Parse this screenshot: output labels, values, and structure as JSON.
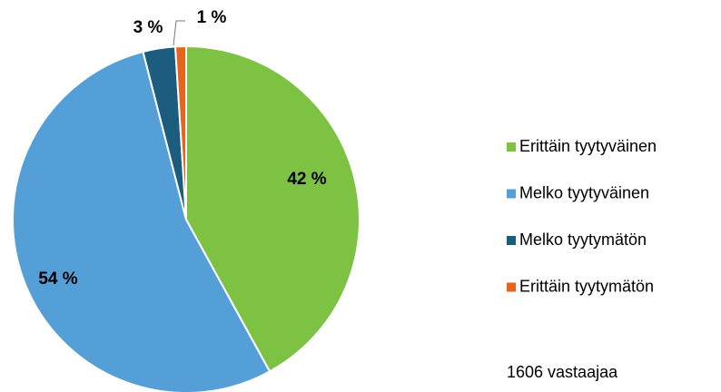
{
  "chart_data": {
    "type": "pie",
    "categories": [
      "Erittäin tyytyväinen",
      "Melko tyytyväinen",
      "Melko tyytymätön",
      "Erittäin tyytymätön"
    ],
    "values": [
      42,
      54,
      3,
      1
    ],
    "value_labels": [
      "42 %",
      "54 %",
      "3 %",
      "1 %"
    ],
    "colors": [
      "#7dc243",
      "#559fd8",
      "#1c5c7e",
      "#e8641c"
    ],
    "annotation": "1606 vastaajaa",
    "legend": "right"
  }
}
